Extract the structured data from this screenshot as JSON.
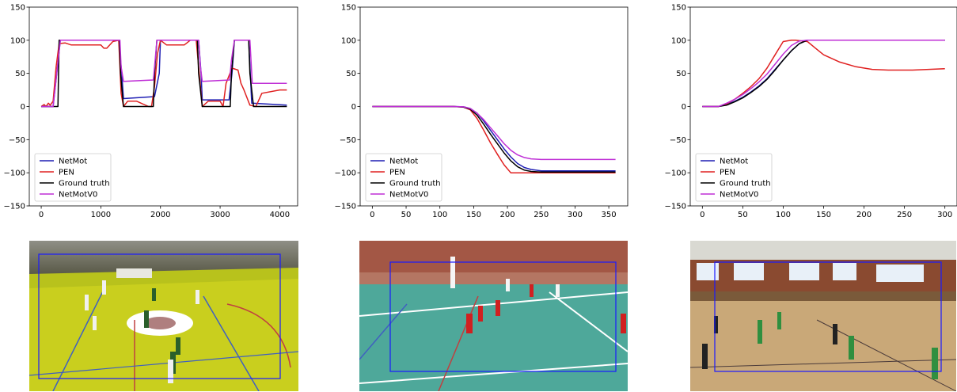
{
  "colors": {
    "NetMot": "#1f1fb4",
    "PEN": "#e02020",
    "Ground truth": "#000000",
    "NetMotV0": "#bf2fd6",
    "bbox": "#1a1aff"
  },
  "chart_data": [
    {
      "type": "line",
      "title": "",
      "xlabel": "",
      "ylabel": "",
      "xlim": [
        -200,
        4300
      ],
      "ylim": [
        -150,
        150
      ],
      "xticks": [
        0,
        1000,
        2000,
        3000,
        4000
      ],
      "yticks": [
        150,
        100,
        50,
        0,
        -50,
        -100,
        -150
      ],
      "legend": "lower-left",
      "grid": false,
      "series": [
        {
          "name": "NetMot",
          "x": [
            0,
            200,
            260,
            320,
            1300,
            1350,
            1380,
            1900,
            1980,
            2000,
            2640,
            2680,
            2700,
            3150,
            3200,
            3240,
            3480,
            3530,
            4120
          ],
          "y": [
            0,
            0,
            50,
            100,
            100,
            50,
            12,
            15,
            50,
            100,
            100,
            50,
            10,
            10,
            50,
            100,
            100,
            5,
            2
          ]
        },
        {
          "name": "PEN",
          "x": [
            0,
            50,
            80,
            120,
            150,
            200,
            250,
            300,
            400,
            500,
            700,
            1000,
            1050,
            1100,
            1200,
            1300,
            1340,
            1380,
            1450,
            1600,
            1800,
            1850,
            1900,
            1950,
            2000,
            2100,
            2400,
            2500,
            2600,
            2650,
            2700,
            2800,
            3000,
            3050,
            3100,
            3200,
            3300,
            3350,
            3400,
            3500,
            3600,
            3700,
            4000,
            4120
          ],
          "y": [
            0,
            3,
            0,
            5,
            2,
            8,
            60,
            95,
            96,
            93,
            93,
            93,
            88,
            88,
            98,
            100,
            20,
            0,
            8,
            8,
            0,
            0,
            30,
            80,
            100,
            93,
            93,
            100,
            100,
            50,
            0,
            8,
            8,
            0,
            35,
            58,
            55,
            35,
            25,
            2,
            0,
            20,
            25,
            25
          ]
        },
        {
          "name": "Ground truth",
          "x": [
            0,
            280,
            300,
            1310,
            1330,
            1380,
            1880,
            1900,
            1940,
            2620,
            2640,
            2700,
            3170,
            3190,
            3240,
            3480,
            3500,
            3560,
            4120
          ],
          "y": [
            0,
            0,
            100,
            100,
            50,
            0,
            0,
            50,
            100,
            100,
            50,
            0,
            0,
            50,
            100,
            100,
            50,
            0,
            0
          ]
        },
        {
          "name": "NetMotV0",
          "x": [
            0,
            200,
            320,
            1320,
            1340,
            1380,
            1880,
            1910,
            1940,
            2640,
            2670,
            2700,
            3160,
            3190,
            3240,
            3500,
            3540,
            4120
          ],
          "y": [
            0,
            0,
            100,
            100,
            60,
            38,
            40,
            70,
            100,
            100,
            60,
            38,
            40,
            70,
            100,
            100,
            35,
            35
          ]
        }
      ]
    },
    {
      "type": "line",
      "title": "",
      "xlabel": "",
      "ylabel": "",
      "xlim": [
        -18,
        378
      ],
      "ylim": [
        -150,
        150
      ],
      "xticks": [
        0,
        50,
        100,
        150,
        200,
        250,
        300,
        350
      ],
      "yticks": [
        150,
        100,
        50,
        0,
        -50,
        -100,
        -150
      ],
      "legend": "lower-left",
      "grid": false,
      "series": [
        {
          "name": "NetMot",
          "x": [
            0,
            120,
            135,
            145,
            155,
            165,
            175,
            185,
            195,
            205,
            215,
            225,
            235,
            250,
            270,
            300,
            360
          ],
          "y": [
            0,
            0,
            -0.5,
            -3,
            -10,
            -22,
            -36,
            -50,
            -64,
            -76,
            -86,
            -92,
            -95,
            -97,
            -97,
            -97,
            -97
          ]
        },
        {
          "name": "PEN",
          "x": [
            0,
            120,
            135,
            145,
            155,
            165,
            175,
            185,
            195,
            205,
            230,
            260,
            300,
            360
          ],
          "y": [
            0,
            0,
            -1,
            -5,
            -18,
            -36,
            -55,
            -72,
            -88,
            -100,
            -100,
            -100,
            -100,
            -100
          ]
        },
        {
          "name": "Ground truth",
          "x": [
            0,
            120,
            135,
            145,
            155,
            165,
            175,
            185,
            195,
            205,
            215,
            225,
            235,
            250,
            270,
            300,
            360
          ],
          "y": [
            0,
            0,
            -1,
            -4,
            -13,
            -27,
            -42,
            -56,
            -70,
            -82,
            -91,
            -96,
            -98,
            -99,
            -99,
            -99,
            -99
          ]
        },
        {
          "name": "NetMotV0",
          "x": [
            0,
            120,
            135,
            145,
            155,
            165,
            175,
            185,
            195,
            205,
            215,
            225,
            235,
            250,
            270,
            300,
            360
          ],
          "y": [
            0,
            0,
            -0.5,
            -3,
            -10,
            -20,
            -32,
            -44,
            -56,
            -66,
            -73,
            -77,
            -79,
            -80,
            -80,
            -80,
            -80
          ]
        }
      ]
    },
    {
      "type": "line",
      "title": "",
      "xlabel": "",
      "ylabel": "",
      "xlim": [
        -15,
        315
      ],
      "ylim": [
        -150,
        150
      ],
      "xticks": [
        0,
        50,
        100,
        150,
        200,
        250,
        300
      ],
      "yticks": [
        150,
        100,
        50,
        0,
        -50,
        -100,
        -150
      ],
      "legend": "lower-left",
      "grid": false,
      "series": [
        {
          "name": "NetMot",
          "x": [
            0,
            20,
            30,
            40,
            50,
            60,
            70,
            80,
            90,
            100,
            110,
            120,
            130,
            140,
            160,
            200,
            250,
            300
          ],
          "y": [
            0,
            0,
            3,
            8,
            14,
            22,
            31,
            42,
            56,
            70,
            84,
            95,
            100,
            100,
            100,
            100,
            100,
            100
          ]
        },
        {
          "name": "PEN",
          "x": [
            0,
            20,
            30,
            40,
            50,
            60,
            70,
            80,
            90,
            100,
            110,
            115,
            130,
            140,
            150,
            170,
            190,
            210,
            230,
            260,
            300
          ],
          "y": [
            0,
            0,
            4,
            11,
            20,
            30,
            42,
            58,
            78,
            98,
            100,
            100,
            98,
            88,
            78,
            67,
            60,
            56,
            55,
            55,
            57
          ]
        },
        {
          "name": "Ground truth",
          "x": [
            0,
            20,
            30,
            40,
            50,
            60,
            70,
            80,
            90,
            100,
            110,
            120,
            130,
            140,
            160,
            200,
            250,
            300
          ],
          "y": [
            0,
            0,
            2,
            7,
            13,
            21,
            30,
            41,
            55,
            70,
            84,
            95,
            100,
            100,
            100,
            100,
            100,
            100
          ]
        },
        {
          "name": "NetMotV0",
          "x": [
            0,
            20,
            30,
            40,
            50,
            60,
            70,
            80,
            90,
            100,
            110,
            120,
            130,
            140,
            160,
            200,
            250,
            300
          ],
          "y": [
            0,
            0,
            5,
            11,
            18,
            27,
            37,
            49,
            64,
            79,
            92,
            99,
            100,
            100,
            100,
            100,
            100,
            100
          ]
        }
      ]
    }
  ]
}
